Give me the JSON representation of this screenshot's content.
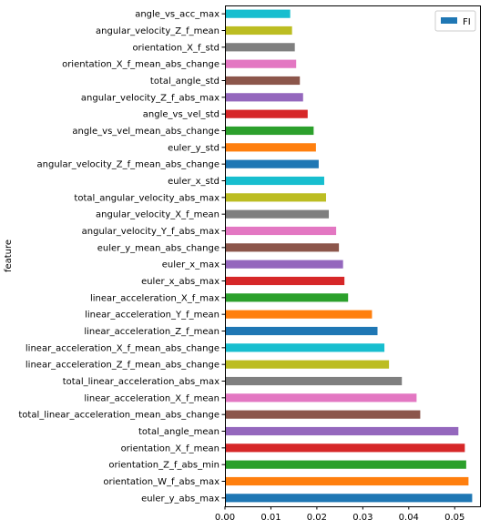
{
  "chart_data": {
    "type": "bar",
    "orientation": "horizontal",
    "categories": [
      "euler_y_abs_max",
      "orientation_W_f_abs_max",
      "orientation_Z_f_abs_min",
      "orientation_X_f_mean",
      "total_angle_mean",
      "total_linear_acceleration_mean_abs_change",
      "linear_acceleration_X_f_mean",
      "total_linear_acceleration_abs_max",
      "linear_acceleration_Z_f_mean_abs_change",
      "linear_acceleration_X_f_mean_abs_change",
      "linear_acceleration_Z_f_mean",
      "linear_acceleration_Y_f_mean",
      "linear_acceleration_X_f_max",
      "euler_x_abs_max",
      "euler_x_max",
      "euler_y_mean_abs_change",
      "angular_velocity_Y_f_abs_max",
      "angular_velocity_X_f_mean",
      "total_angular_velocity_abs_max",
      "euler_x_std",
      "angular_velocity_Z_f_mean_abs_change",
      "euler_y_std",
      "angle_vs_vel_mean_abs_change",
      "angle_vs_vel_std",
      "angular_velocity_Z_f_abs_max",
      "total_angle_std",
      "orientation_X_f_mean_abs_change",
      "orientation_X_f_std",
      "angular_velocity_Z_f_mean",
      "angle_vs_acc_max"
    ],
    "series": [
      {
        "name": "FI",
        "values": [
          0.0538,
          0.053,
          0.0525,
          0.0522,
          0.0508,
          0.0425,
          0.0417,
          0.0385,
          0.0357,
          0.0347,
          0.0332,
          0.032,
          0.0268,
          0.026,
          0.0257,
          0.0248,
          0.0242,
          0.0226,
          0.022,
          0.0216,
          0.0204,
          0.0198,
          0.0193,
          0.018,
          0.017,
          0.0163,
          0.0155,
          0.0152,
          0.0146,
          0.0142
        ]
      }
    ],
    "colors": [
      "#1f77b4",
      "#ff7f0e",
      "#2ca02c",
      "#d62728",
      "#9467bd",
      "#8c564b",
      "#e377c2",
      "#7f7f7f",
      "#bcbd22",
      "#17becf"
    ],
    "xlabel": "",
    "ylabel": "feature",
    "xlim": [
      0.0,
      0.0555
    ],
    "xticks": [
      0.0,
      0.01,
      0.02,
      0.03,
      0.04,
      0.05
    ],
    "xtick_labels": [
      "0.00",
      "0.01",
      "0.02",
      "0.03",
      "0.04",
      "0.05"
    ],
    "legend": {
      "position": "upper-right",
      "label": "FI",
      "color": "#1f77b4"
    },
    "grid": false
  }
}
